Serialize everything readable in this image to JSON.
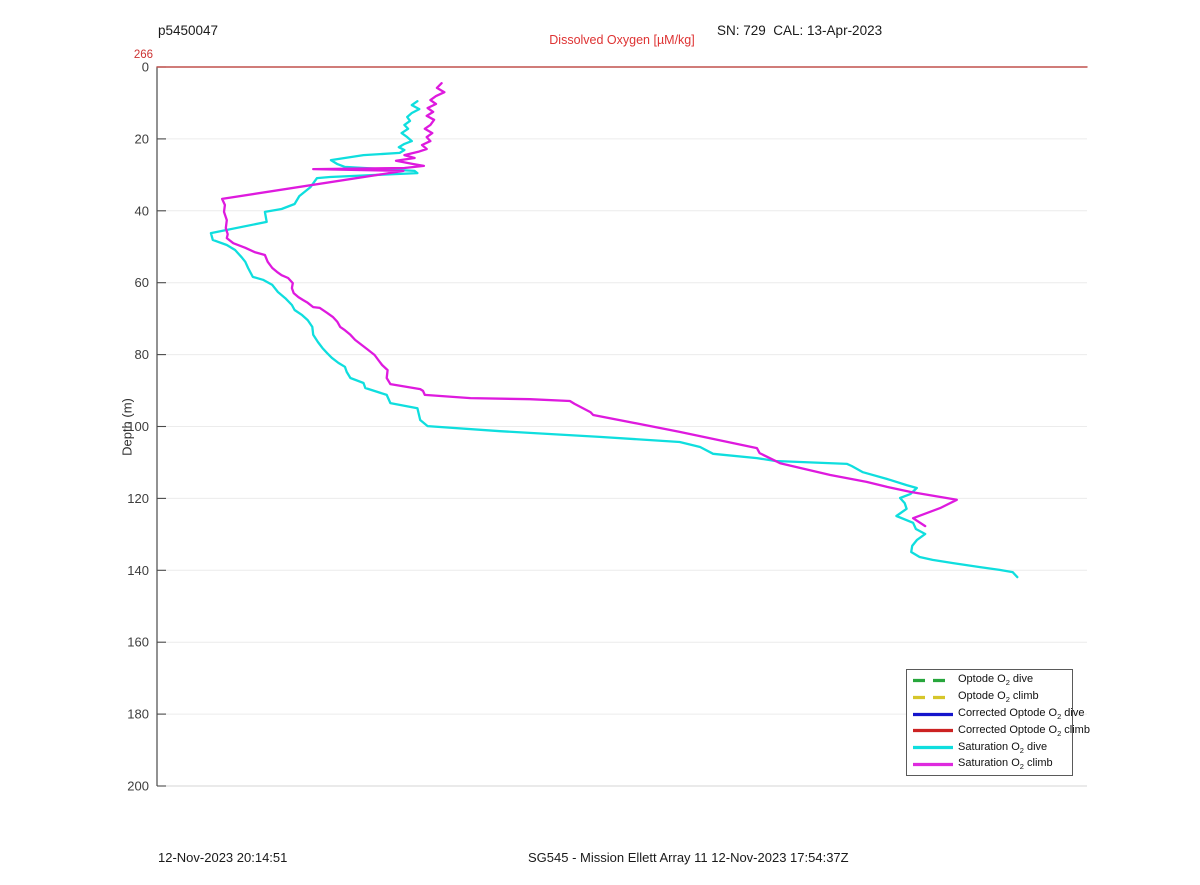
{
  "header": {
    "left_title": "p5450047",
    "center_title": "Dissolved Oxygen [µM/kg]",
    "right_title": "SN: 729  CAL: 13-Apr-2023",
    "overflow_label": "266"
  },
  "footer": {
    "left_timestamp": "12-Nov-2023 20:14:51",
    "center_caption": "SG545 - Mission Ellett Array 11 12-Nov-2023 17:54:37Z"
  },
  "legend": {
    "entries": [
      {
        "pre": "Optode O",
        "sub": "2",
        "post": " dive",
        "color": "#27a63c",
        "dash": true
      },
      {
        "pre": "Optode O",
        "sub": "2",
        "post": " climb",
        "color": "#d6c62a",
        "dash": true
      },
      {
        "pre": "Corrected Optode O",
        "sub": "2",
        "post": " dive",
        "color": "#1515cc",
        "dash": false
      },
      {
        "pre": "Corrected Optode O",
        "sub": "2",
        "post": " climb",
        "color": "#cc2222",
        "dash": false
      },
      {
        "pre": "Saturation O",
        "sub": "2",
        "post": " dive",
        "color": "#0fdede",
        "dash": false
      },
      {
        "pre": "Saturation O",
        "sub": "2",
        "post": " climb",
        "color": "#de2ade",
        "dash": false
      }
    ]
  },
  "chart_data": {
    "type": "line",
    "title": "Dissolved Oxygen [µM/kg]",
    "xlabel": "",
    "ylabel": "Depth (m)",
    "grid": "horizontal",
    "x_axis": {
      "tick_labels_visible": false,
      "units_note": "x given as fraction 0-1 of axis width; no numeric x ticks shown in figure"
    },
    "y_axis": {
      "min": 0,
      "max": 200,
      "direction": "down",
      "ticks": [
        0,
        20,
        40,
        60,
        80,
        100,
        120,
        140,
        160,
        180,
        200
      ]
    },
    "annotations": [
      {
        "text": "266",
        "color": "#cc3333",
        "position": "top-left",
        "meaning": "red trace value at top of axis"
      }
    ],
    "legend_position": "lower-right",
    "series": [
      {
        "id": "optode-o2-dive",
        "name": "Optode O2 dive",
        "color": "#27a63c",
        "line_style": "dash-dot",
        "line_width": 2.3,
        "points": []
      },
      {
        "id": "optode-o2-climb",
        "name": "Optode O2 climb",
        "color": "#d6c62a",
        "line_style": "dash-dot",
        "line_width": 2.3,
        "points": []
      },
      {
        "id": "corrected-optode-o2-dive",
        "name": "Corrected Optode O2 dive",
        "color": "#1515cc",
        "line_style": "solid",
        "line_width": 1.3,
        "points": []
      },
      {
        "id": "corrected-optode-o2-climb",
        "name": "Corrected Optode O2 climb",
        "color": "#c0504d",
        "line_style": "solid",
        "line_width": 1.4,
        "points": [
          [
            0,
            0
          ],
          [
            1,
            0
          ]
        ]
      },
      {
        "id": "saturation-o2-dive",
        "name": "Saturation O2 dive",
        "color": "#0fdede",
        "line_style": "solid",
        "line_width": 2.3,
        "points": [
          [
            0.28,
            9.5
          ],
          [
            0.274,
            10.6
          ],
          [
            0.282,
            11.7
          ],
          [
            0.274,
            12.8
          ],
          [
            0.269,
            13.9
          ],
          [
            0.272,
            15.0
          ],
          [
            0.266,
            16.1
          ],
          [
            0.27,
            17.2
          ],
          [
            0.263,
            18.4
          ],
          [
            0.269,
            19.5
          ],
          [
            0.274,
            20.6
          ],
          [
            0.266,
            21.4
          ],
          [
            0.26,
            22.3
          ],
          [
            0.266,
            23.1
          ],
          [
            0.261,
            23.9
          ],
          [
            0.222,
            24.5
          ],
          [
            0.187,
            25.9
          ],
          [
            0.194,
            27.0
          ],
          [
            0.202,
            27.8
          ],
          [
            0.277,
            28.9
          ],
          [
            0.28,
            29.5
          ],
          [
            0.186,
            30.6
          ],
          [
            0.172,
            30.9
          ],
          [
            0.165,
            33.4
          ],
          [
            0.153,
            35.9
          ],
          [
            0.148,
            38.1
          ],
          [
            0.134,
            39.5
          ],
          [
            0.116,
            40.3
          ],
          [
            0.118,
            43.1
          ],
          [
            0.058,
            46.2
          ],
          [
            0.06,
            48.1
          ],
          [
            0.075,
            49.5
          ],
          [
            0.084,
            50.9
          ],
          [
            0.091,
            52.9
          ],
          [
            0.095,
            54.2
          ],
          [
            0.098,
            55.9
          ],
          [
            0.103,
            58.4
          ],
          [
            0.114,
            59.2
          ],
          [
            0.124,
            60.6
          ],
          [
            0.13,
            62.6
          ],
          [
            0.138,
            64.3
          ],
          [
            0.145,
            66.2
          ],
          [
            0.148,
            67.6
          ],
          [
            0.156,
            69.0
          ],
          [
            0.162,
            70.4
          ],
          [
            0.167,
            72.3
          ],
          [
            0.168,
            74.5
          ],
          [
            0.173,
            76.5
          ],
          [
            0.178,
            78.2
          ],
          [
            0.183,
            79.6
          ],
          [
            0.188,
            80.9
          ],
          [
            0.195,
            82.3
          ],
          [
            0.202,
            83.4
          ],
          [
            0.204,
            84.8
          ],
          [
            0.208,
            86.5
          ],
          [
            0.222,
            87.9
          ],
          [
            0.224,
            89.3
          ],
          [
            0.247,
            91.2
          ],
          [
            0.251,
            93.5
          ],
          [
            0.28,
            94.9
          ],
          [
            0.283,
            98.2
          ],
          [
            0.291,
            99.9
          ],
          [
            0.369,
            101.3
          ],
          [
            0.476,
            102.9
          ],
          [
            0.562,
            104.3
          ],
          [
            0.584,
            105.7
          ],
          [
            0.598,
            107.6
          ],
          [
            0.645,
            108.8
          ],
          [
            0.665,
            109.6
          ],
          [
            0.742,
            110.4
          ],
          [
            0.747,
            111.0
          ],
          [
            0.759,
            112.7
          ],
          [
            0.785,
            114.6
          ],
          [
            0.806,
            116.3
          ],
          [
            0.817,
            117.1
          ],
          [
            0.81,
            118.8
          ],
          [
            0.799,
            119.9
          ],
          [
            0.804,
            121.3
          ],
          [
            0.806,
            122.9
          ],
          [
            0.795,
            124.9
          ],
          [
            0.813,
            126.8
          ],
          [
            0.816,
            128.5
          ],
          [
            0.826,
            129.9
          ],
          [
            0.817,
            131.6
          ],
          [
            0.812,
            133.2
          ],
          [
            0.811,
            134.9
          ],
          [
            0.82,
            136.3
          ],
          [
            0.834,
            137.1
          ],
          [
            0.856,
            138.0
          ],
          [
            0.885,
            139.1
          ],
          [
            0.906,
            139.9
          ],
          [
            0.92,
            140.5
          ],
          [
            0.925,
            141.9
          ]
        ]
      },
      {
        "id": "saturation-o2-climb",
        "name": "Saturation O2 climb",
        "color": "#de1ade",
        "line_style": "solid",
        "line_width": 2.3,
        "points": [
          [
            0.306,
            4.5
          ],
          [
            0.301,
            5.8
          ],
          [
            0.309,
            7.0
          ],
          [
            0.3,
            8.1
          ],
          [
            0.294,
            9.2
          ],
          [
            0.3,
            10.3
          ],
          [
            0.291,
            11.4
          ],
          [
            0.297,
            12.5
          ],
          [
            0.29,
            13.6
          ],
          [
            0.298,
            14.7
          ],
          [
            0.294,
            16.1
          ],
          [
            0.288,
            17.2
          ],
          [
            0.296,
            18.4
          ],
          [
            0.29,
            19.5
          ],
          [
            0.294,
            20.6
          ],
          [
            0.285,
            21.7
          ],
          [
            0.29,
            22.8
          ],
          [
            0.281,
            23.6
          ],
          [
            0.266,
            24.5
          ],
          [
            0.277,
            25.3
          ],
          [
            0.257,
            26.1
          ],
          [
            0.276,
            27.0
          ],
          [
            0.287,
            27.5
          ],
          [
            0.266,
            28.1
          ],
          [
            0.168,
            28.4
          ],
          [
            0.265,
            28.9
          ],
          [
            0.07,
            36.7
          ],
          [
            0.073,
            38.4
          ],
          [
            0.072,
            40.3
          ],
          [
            0.075,
            42.6
          ],
          [
            0.074,
            44.8
          ],
          [
            0.076,
            46.5
          ],
          [
            0.075,
            47.6
          ],
          [
            0.082,
            49.0
          ],
          [
            0.095,
            50.3
          ],
          [
            0.105,
            51.5
          ],
          [
            0.116,
            52.3
          ],
          [
            0.119,
            54.2
          ],
          [
            0.124,
            55.9
          ],
          [
            0.129,
            57.0
          ],
          [
            0.134,
            57.9
          ],
          [
            0.141,
            58.7
          ],
          [
            0.146,
            60.1
          ],
          [
            0.145,
            61.5
          ],
          [
            0.147,
            62.9
          ],
          [
            0.152,
            64.0
          ],
          [
            0.157,
            64.8
          ],
          [
            0.162,
            65.6
          ],
          [
            0.168,
            66.8
          ],
          [
            0.175,
            67.0
          ],
          [
            0.183,
            68.4
          ],
          [
            0.189,
            69.5
          ],
          [
            0.194,
            70.9
          ],
          [
            0.197,
            72.3
          ],
          [
            0.202,
            73.2
          ],
          [
            0.208,
            74.5
          ],
          [
            0.213,
            75.9
          ],
          [
            0.22,
            77.3
          ],
          [
            0.227,
            78.7
          ],
          [
            0.234,
            80.1
          ],
          [
            0.238,
            81.5
          ],
          [
            0.242,
            82.9
          ],
          [
            0.248,
            84.3
          ],
          [
            0.247,
            86.5
          ],
          [
            0.251,
            88.2
          ],
          [
            0.283,
            89.6
          ],
          [
            0.286,
            90.1
          ],
          [
            0.288,
            91.2
          ],
          [
            0.337,
            92.1
          ],
          [
            0.401,
            92.4
          ],
          [
            0.444,
            92.9
          ],
          [
            0.449,
            93.7
          ],
          [
            0.466,
            96.0
          ],
          [
            0.469,
            96.8
          ],
          [
            0.519,
            99.3
          ],
          [
            0.562,
            101.5
          ],
          [
            0.645,
            106.0
          ],
          [
            0.648,
            107.4
          ],
          [
            0.67,
            110.2
          ],
          [
            0.724,
            113.5
          ],
          [
            0.763,
            115.4
          ],
          [
            0.785,
            116.8
          ],
          [
            0.81,
            118.2
          ],
          [
            0.86,
            120.4
          ],
          [
            0.842,
            122.7
          ],
          [
            0.813,
            125.5
          ],
          [
            0.826,
            127.7
          ]
        ]
      }
    ]
  }
}
